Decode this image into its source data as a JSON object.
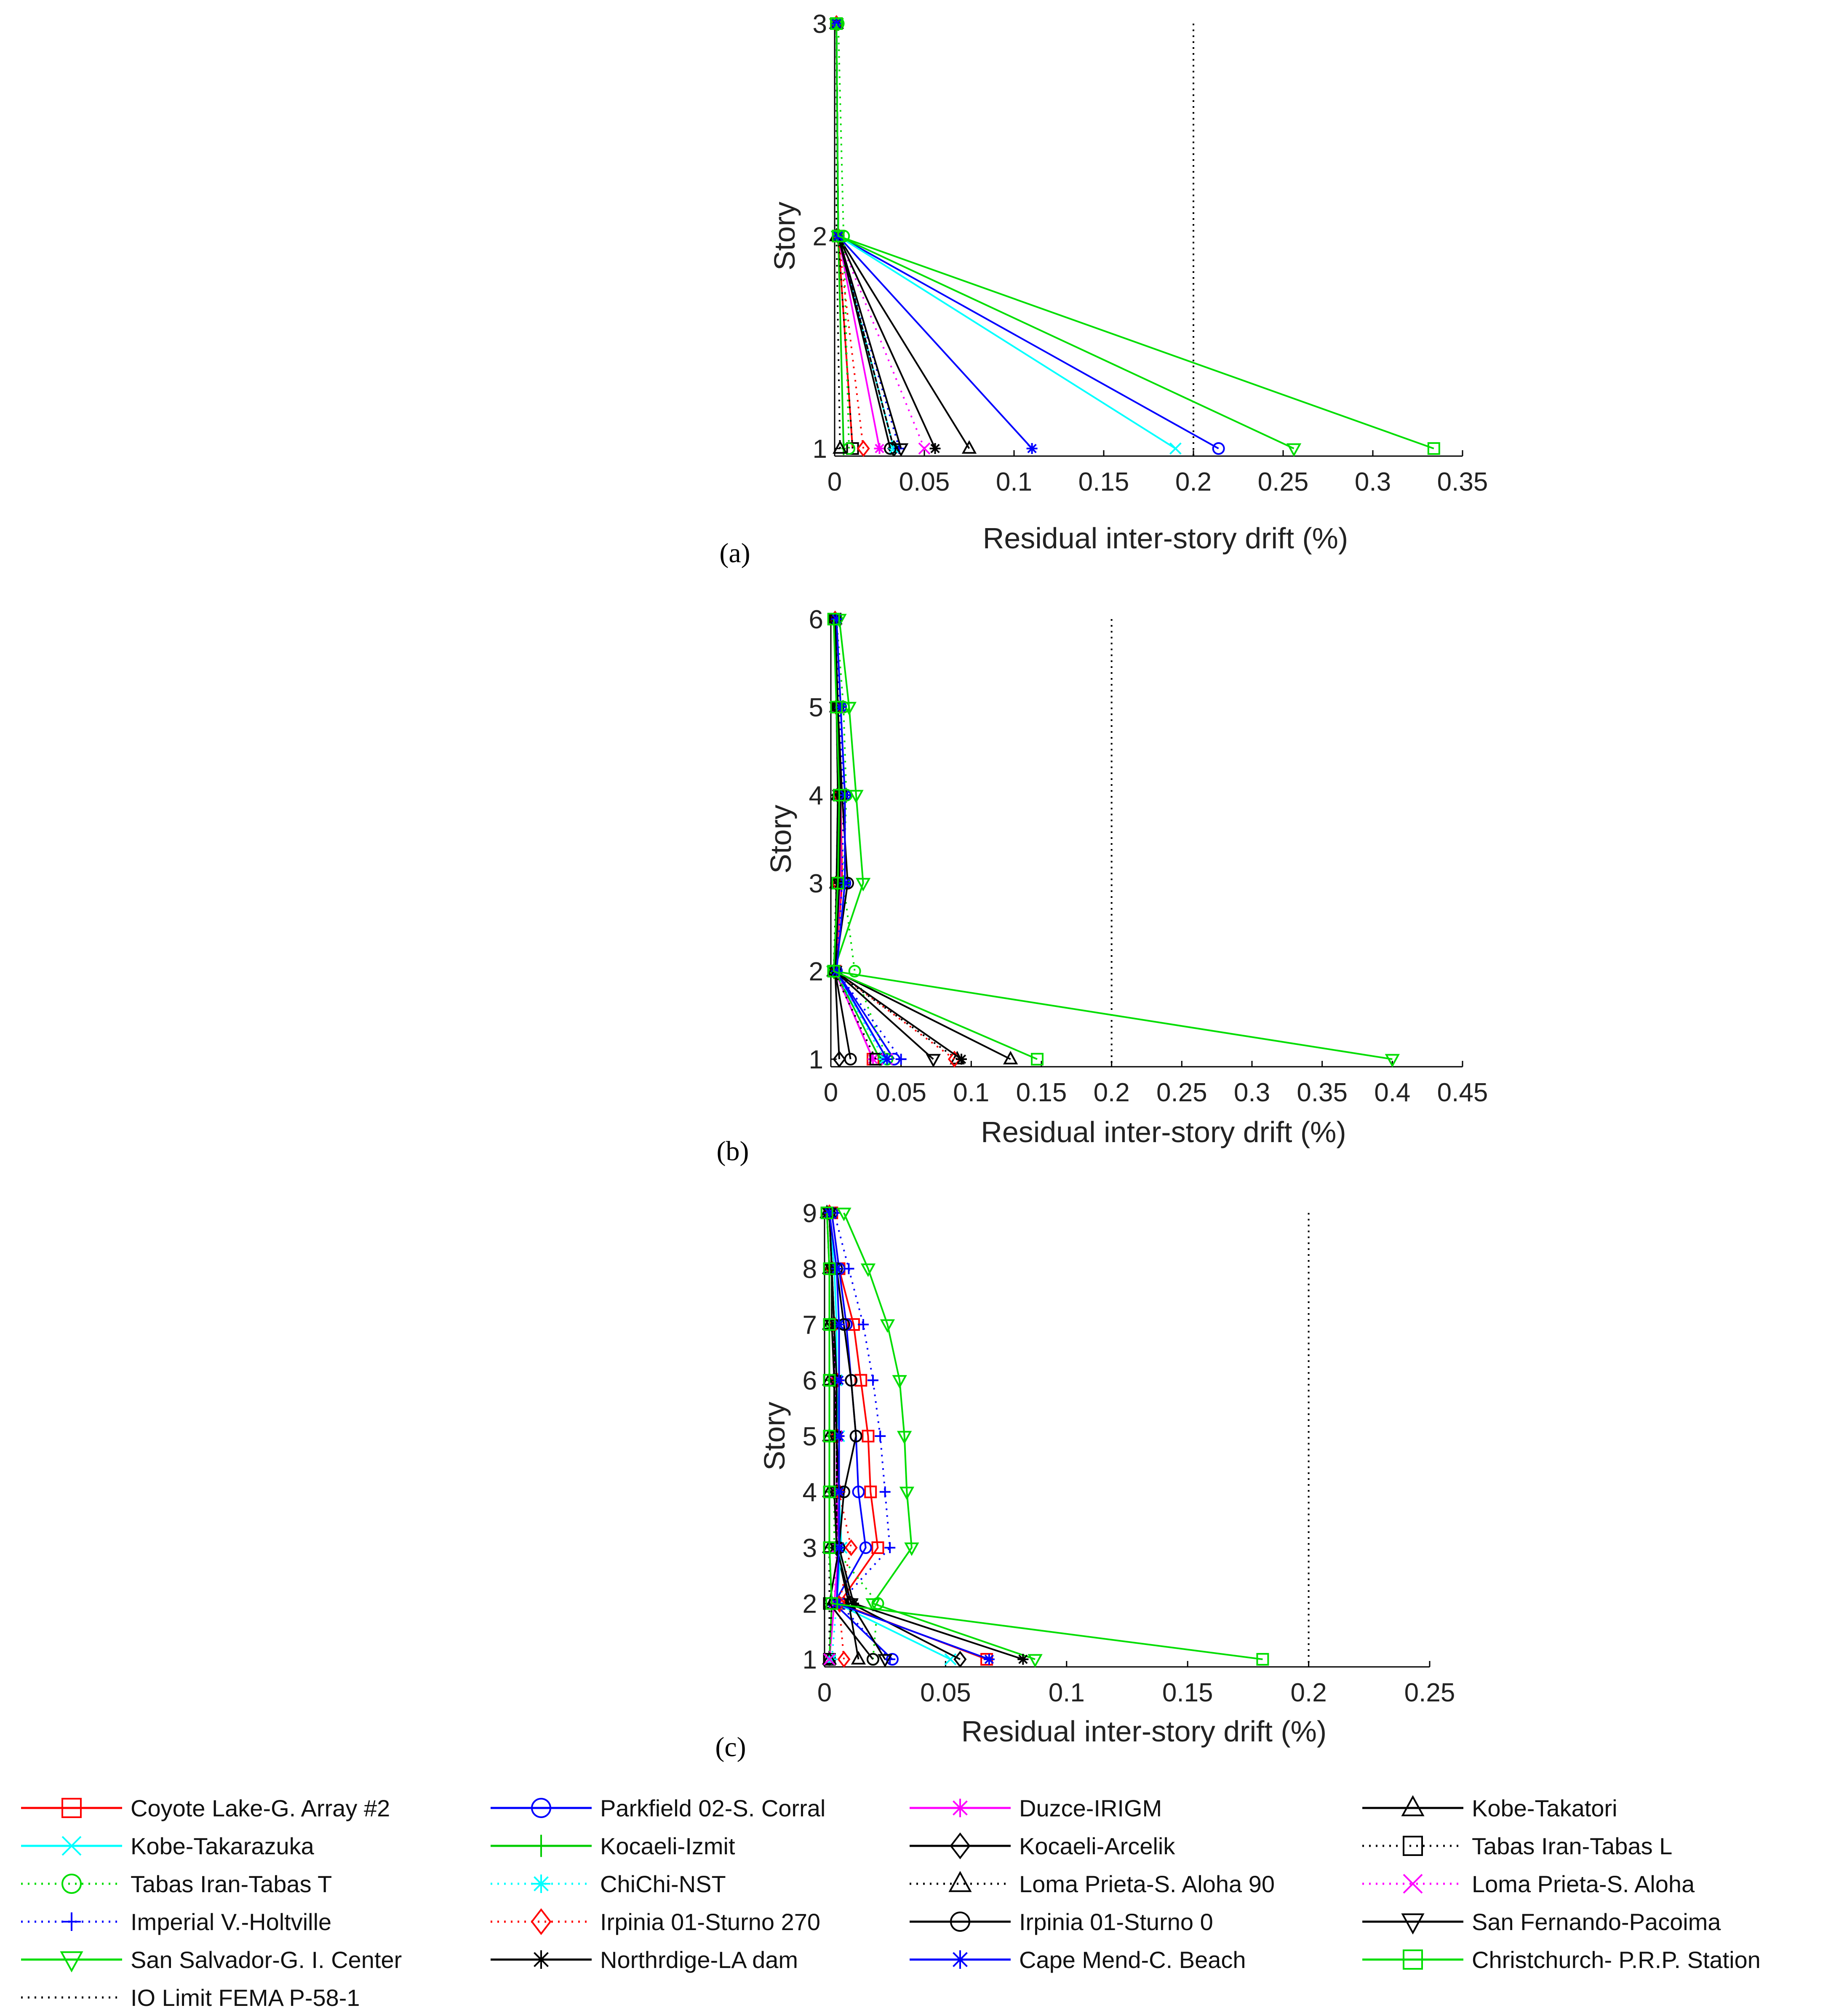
{
  "chart_data": [
    {
      "type": "line",
      "panel_label": "(a)",
      "xlabel": "Residual inter-story drift (%)",
      "ylabel": "Story",
      "xlim": [
        0,
        0.35
      ],
      "ylim": [
        1,
        3
      ],
      "xticks": [
        "0",
        "0.05",
        "0.1",
        "0.15",
        "0.2",
        "0.25",
        "0.3",
        "0.35"
      ],
      "yticks": [
        "1",
        "2",
        "3"
      ],
      "limit_line": {
        "name": "IO Limit FEMA P-58-1",
        "x": 0.2
      },
      "stories": [
        1,
        2,
        3
      ],
      "series": [
        {
          "name": "Coyote Lake-G. Array #2",
          "values": [
            0.01,
            0.002,
            0.001
          ]
        },
        {
          "name": "Parkfield 02-S. Corral",
          "values": [
            0.214,
            0.002,
            0.001
          ]
        },
        {
          "name": "Duzce-IRIGM",
          "values": [
            0.025,
            0.002,
            0.001
          ]
        },
        {
          "name": "Kobe-Takatori",
          "values": [
            0.075,
            0.002,
            0.001
          ]
        },
        {
          "name": "Kobe-Takarazuka",
          "values": [
            0.19,
            0.002,
            0.001
          ]
        },
        {
          "name": "Kocaeli-Izmit",
          "values": [
            0.005,
            0.002,
            0.001
          ]
        },
        {
          "name": "Kocaeli-Arcelik",
          "values": [
            0.033,
            0.002,
            0.001
          ]
        },
        {
          "name": "Tabas Iran-Tabas L",
          "values": [
            0.01,
            0.002,
            0.001
          ]
        },
        {
          "name": "Tabas Iran-Tabas T",
          "values": [
            0.008,
            0.005,
            0.002
          ]
        },
        {
          "name": "ChiChi-NST",
          "values": [
            0.033,
            0.002,
            0.001
          ]
        },
        {
          "name": "Loma Prieta-S. Aloha 90",
          "values": [
            0.003,
            0.001,
            0.001
          ]
        },
        {
          "name": "Loma Prieta-S. Aloha",
          "values": [
            0.05,
            0.002,
            0.001
          ]
        },
        {
          "name": "Imperial V.-Holtville",
          "values": [
            0.036,
            0.002,
            0.001
          ]
        },
        {
          "name": "Irpinia 01-Sturno 270",
          "values": [
            0.016,
            0.002,
            0.001
          ]
        },
        {
          "name": "Irpinia 01-Sturno 0",
          "values": [
            0.031,
            0.002,
            0.001
          ]
        },
        {
          "name": "San Fernando-Pacoima",
          "values": [
            0.037,
            0.002,
            0.001
          ]
        },
        {
          "name": "San Salvador-G. I. Center",
          "values": [
            0.256,
            0.002,
            0.001
          ]
        },
        {
          "name": "Northrdige-LA dam",
          "values": [
            0.056,
            0.002,
            0.001
          ]
        },
        {
          "name": "Cape Mend-C. Beach",
          "values": [
            0.11,
            0.002,
            0.001
          ]
        },
        {
          "name": "Christchurch- P.R.P. Station",
          "values": [
            0.334,
            0.002,
            0.001
          ]
        }
      ]
    },
    {
      "type": "line",
      "panel_label": "(b)",
      "xlabel": "Residual inter-story drift (%)",
      "ylabel": "Story",
      "xlim": [
        0,
        0.45
      ],
      "ylim": [
        1,
        6
      ],
      "xticks": [
        "0",
        "0.05",
        "0.1",
        "0.15",
        "0.2",
        "0.25",
        "0.3",
        "0.35",
        "0.4",
        "0.45"
      ],
      "yticks": [
        "1",
        "2",
        "3",
        "4",
        "5",
        "6"
      ],
      "limit_line": {
        "name": "IO Limit FEMA P-58-1",
        "x": 0.2
      },
      "stories": [
        1,
        2,
        3,
        4,
        5,
        6
      ],
      "series": [
        {
          "name": "Coyote Lake-G. Array #2",
          "values": [
            0.03,
            0.003,
            0.008,
            0.007,
            0.005,
            0.003
          ]
        },
        {
          "name": "Parkfield 02-S. Corral",
          "values": [
            0.045,
            0.004,
            0.01,
            0.01,
            0.007,
            0.004
          ]
        },
        {
          "name": "Duzce-IRIGM",
          "values": [
            0.03,
            0.003,
            0.007,
            0.007,
            0.005,
            0.003
          ]
        },
        {
          "name": "Kobe-Takatori",
          "values": [
            0.128,
            0.003,
            0.004,
            0.006,
            0.005,
            0.003
          ]
        },
        {
          "name": "Kobe-Takarazuka",
          "values": [
            0.04,
            0.003,
            0.006,
            0.007,
            0.005,
            0.003
          ]
        },
        {
          "name": "Kocaeli-Izmit",
          "values": [
            0.035,
            0.003,
            0.005,
            0.006,
            0.004,
            0.003
          ]
        },
        {
          "name": "Kocaeli-Arcelik",
          "values": [
            0.006,
            0.003,
            0.004,
            0.005,
            0.004,
            0.003
          ]
        },
        {
          "name": "Tabas Iran-Tabas L",
          "values": [
            0.032,
            0.002,
            0.005,
            0.006,
            0.004,
            0.003
          ]
        },
        {
          "name": "Tabas Iran-Tabas T",
          "values": [
            0.04,
            0.017,
            0.009,
            0.011,
            0.009,
            0.004
          ]
        },
        {
          "name": "ChiChi-NST",
          "values": [
            0.038,
            0.003,
            0.006,
            0.007,
            0.005,
            0.003
          ]
        },
        {
          "name": "Loma Prieta-S. Aloha 90",
          "values": [
            0.09,
            0.002,
            0.004,
            0.005,
            0.004,
            0.003
          ]
        },
        {
          "name": "Loma Prieta-S. Aloha",
          "values": [
            0.04,
            0.003,
            0.006,
            0.007,
            0.005,
            0.003
          ]
        },
        {
          "name": "Imperial V.-Holtville",
          "values": [
            0.05,
            0.004,
            0.008,
            0.009,
            0.006,
            0.004
          ]
        },
        {
          "name": "Irpinia 01-Sturno 270",
          "values": [
            0.088,
            0.003,
            0.005,
            0.006,
            0.004,
            0.003
          ]
        },
        {
          "name": "Irpinia 01-Sturno 0",
          "values": [
            0.014,
            0.003,
            0.012,
            0.008,
            0.005,
            0.003
          ]
        },
        {
          "name": "San Fernando-Pacoima",
          "values": [
            0.073,
            0.003,
            0.006,
            0.006,
            0.004,
            0.003
          ]
        },
        {
          "name": "San Salvador-G. I. Center",
          "values": [
            0.4,
            0.002,
            0.023,
            0.018,
            0.013,
            0.006
          ]
        },
        {
          "name": "Northrdige-LA dam",
          "values": [
            0.093,
            0.003,
            0.006,
            0.007,
            0.005,
            0.003
          ]
        },
        {
          "name": "Cape Mend-C. Beach",
          "values": [
            0.04,
            0.004,
            0.01,
            0.01,
            0.007,
            0.004
          ]
        },
        {
          "name": "Christchurch- P.R.P. Station",
          "values": [
            0.147,
            0.002,
            0.005,
            0.006,
            0.004,
            0.002
          ]
        }
      ]
    },
    {
      "type": "line",
      "panel_label": "(c)",
      "xlabel": "Residual inter-story drift (%)",
      "ylabel": "Story",
      "xlim": [
        0,
        0.25
      ],
      "ylim": [
        1,
        9
      ],
      "xticks": [
        "0",
        "0.05",
        "0.1",
        "0.15",
        "0.2",
        "0.25"
      ],
      "yticks": [
        "1",
        "2",
        "3",
        "4",
        "5",
        "6",
        "7",
        "8",
        "9"
      ],
      "limit_line": {
        "name": "IO Limit FEMA P-58-1",
        "x": 0.2
      },
      "stories": [
        1,
        2,
        3,
        4,
        5,
        6,
        7,
        8,
        9
      ],
      "series": [
        {
          "name": "Coyote Lake-G. Array #2",
          "values": [
            0.067,
            0.006,
            0.022,
            0.019,
            0.018,
            0.015,
            0.012,
            0.006,
            0.003
          ]
        },
        {
          "name": "Parkfield 02-S. Corral",
          "values": [
            0.028,
            0.004,
            0.017,
            0.014,
            0.013,
            0.011,
            0.009,
            0.006,
            0.003
          ]
        },
        {
          "name": "Duzce-IRIGM",
          "values": [
            0.002,
            0.004,
            0.006,
            0.005,
            0.005,
            0.004,
            0.004,
            0.003,
            0.002
          ]
        },
        {
          "name": "Kobe-Takatori",
          "values": [
            0.014,
            0.01,
            0.005,
            0.005,
            0.005,
            0.004,
            0.004,
            0.003,
            0.002
          ]
        },
        {
          "name": "Kobe-Takarazuka",
          "values": [
            0.052,
            0.005,
            0.007,
            0.006,
            0.006,
            0.005,
            0.005,
            0.004,
            0.002
          ]
        },
        {
          "name": "Kocaeli-Izmit",
          "values": [
            0.002,
            0.003,
            0.002,
            0.002,
            0.002,
            0.002,
            0.002,
            0.002,
            0.001
          ]
        },
        {
          "name": "Kocaeli-Arcelik",
          "values": [
            0.056,
            0.011,
            0.005,
            0.005,
            0.005,
            0.004,
            0.004,
            0.003,
            0.002
          ]
        },
        {
          "name": "Tabas Iran-Tabas L",
          "values": [
            0.002,
            0.002,
            0.002,
            0.002,
            0.002,
            0.002,
            0.002,
            0.002,
            0.001
          ]
        },
        {
          "name": "Tabas Iran-Tabas T",
          "values": [
            0.02,
            0.022,
            0.004,
            0.004,
            0.004,
            0.004,
            0.003,
            0.003,
            0.002
          ]
        },
        {
          "name": "ChiChi-NST",
          "values": [
            0.003,
            0.005,
            0.006,
            0.006,
            0.005,
            0.005,
            0.004,
            0.003,
            0.002
          ]
        },
        {
          "name": "Loma Prieta-S. Aloha 90",
          "values": [
            0.002,
            0.003,
            0.002,
            0.002,
            0.002,
            0.002,
            0.002,
            0.002,
            0.001
          ]
        },
        {
          "name": "Loma Prieta-S. Aloha",
          "values": [
            0.002,
            0.004,
            0.005,
            0.005,
            0.005,
            0.004,
            0.004,
            0.003,
            0.002
          ]
        },
        {
          "name": "Imperial V.-Holtville",
          "values": [
            0.027,
            0.006,
            0.027,
            0.025,
            0.023,
            0.02,
            0.016,
            0.01,
            0.004
          ]
        },
        {
          "name": "Irpinia 01-Sturno 270",
          "values": [
            0.008,
            0.006,
            0.011,
            0.006,
            0.005,
            0.005,
            0.004,
            0.003,
            0.002
          ]
        },
        {
          "name": "Irpinia 01-Sturno 0",
          "values": [
            0.02,
            0.002,
            0.006,
            0.008,
            0.013,
            0.011,
            0.008,
            0.005,
            0.002
          ]
        },
        {
          "name": "San Fernando-Pacoima",
          "values": [
            0.025,
            0.011,
            0.005,
            0.004,
            0.004,
            0.004,
            0.003,
            0.003,
            0.002
          ]
        },
        {
          "name": "San Salvador-G. I. Center",
          "values": [
            0.087,
            0.02,
            0.036,
            0.034,
            0.033,
            0.031,
            0.026,
            0.018,
            0.008
          ]
        },
        {
          "name": "Northrdige-LA dam",
          "values": [
            0.082,
            0.012,
            0.006,
            0.006,
            0.005,
            0.005,
            0.004,
            0.003,
            0.002
          ]
        },
        {
          "name": "Cape Mend-C. Beach",
          "values": [
            0.068,
            0.005,
            0.006,
            0.006,
            0.006,
            0.006,
            0.006,
            0.005,
            0.002
          ]
        },
        {
          "name": "Christchurch- P.R.P. Station",
          "values": [
            0.181,
            0.003,
            0.002,
            0.002,
            0.002,
            0.002,
            0.002,
            0.002,
            0.001
          ]
        }
      ]
    }
  ],
  "legend": {
    "entries": [
      {
        "name": "Coyote Lake-G. Array #2",
        "color": "#ff0000",
        "marker": "square",
        "dash": "solid"
      },
      {
        "name": "Parkfield 02-S. Corral",
        "color": "#0000ff",
        "marker": "circle",
        "dash": "solid"
      },
      {
        "name": "Duzce-IRIGM",
        "color": "#ff00ff",
        "marker": "star",
        "dash": "solid"
      },
      {
        "name": "Kobe-Takatori",
        "color": "#000000",
        "marker": "triangle-up",
        "dash": "solid"
      },
      {
        "name": "Kobe-Takarazuka",
        "color": "#00ffff",
        "marker": "x",
        "dash": "solid"
      },
      {
        "name": "Kocaeli-Izmit",
        "color": "#00cc00",
        "marker": "plus-vertical",
        "dash": "solid"
      },
      {
        "name": "Kocaeli-Arcelik",
        "color": "#000000",
        "marker": "diamond",
        "dash": "solid"
      },
      {
        "name": "Tabas Iran-Tabas L",
        "color": "#000000",
        "marker": "square",
        "dash": "dotted"
      },
      {
        "name": "Tabas Iran-Tabas T",
        "color": "#00dd00",
        "marker": "circle",
        "dash": "dotted"
      },
      {
        "name": "ChiChi-NST",
        "color": "#00ffff",
        "marker": "star",
        "dash": "dotted"
      },
      {
        "name": "Loma Prieta-S. Aloha 90",
        "color": "#000000",
        "marker": "triangle-up",
        "dash": "dotted"
      },
      {
        "name": "Loma Prieta-S. Aloha",
        "color": "#ff00ff",
        "marker": "x",
        "dash": "dotted"
      },
      {
        "name": "Imperial V.-Holtville",
        "color": "#0000ff",
        "marker": "plus",
        "dash": "dotted"
      },
      {
        "name": "Irpinia 01-Sturno 270",
        "color": "#ff0000",
        "marker": "diamond",
        "dash": "dotted"
      },
      {
        "name": "Irpinia 01-Sturno 0",
        "color": "#000000",
        "marker": "circle",
        "dash": "solid"
      },
      {
        "name": "San Fernando-Pacoima",
        "color": "#000000",
        "marker": "triangle-down",
        "dash": "solid"
      },
      {
        "name": "San Salvador-G. I. Center",
        "color": "#00dd00",
        "marker": "triangle-down",
        "dash": "solid"
      },
      {
        "name": "Northrdige-LA dam",
        "color": "#000000",
        "marker": "star",
        "dash": "solid"
      },
      {
        "name": "Cape Mend-C. Beach",
        "color": "#0000ff",
        "marker": "star",
        "dash": "solid"
      },
      {
        "name": "Christchurch- P.R.P. Station",
        "color": "#00dd00",
        "marker": "square",
        "dash": "solid"
      },
      {
        "name": "IO Limit FEMA P-58-1",
        "color": "#000000",
        "marker": "none",
        "dash": "dotted"
      }
    ]
  }
}
